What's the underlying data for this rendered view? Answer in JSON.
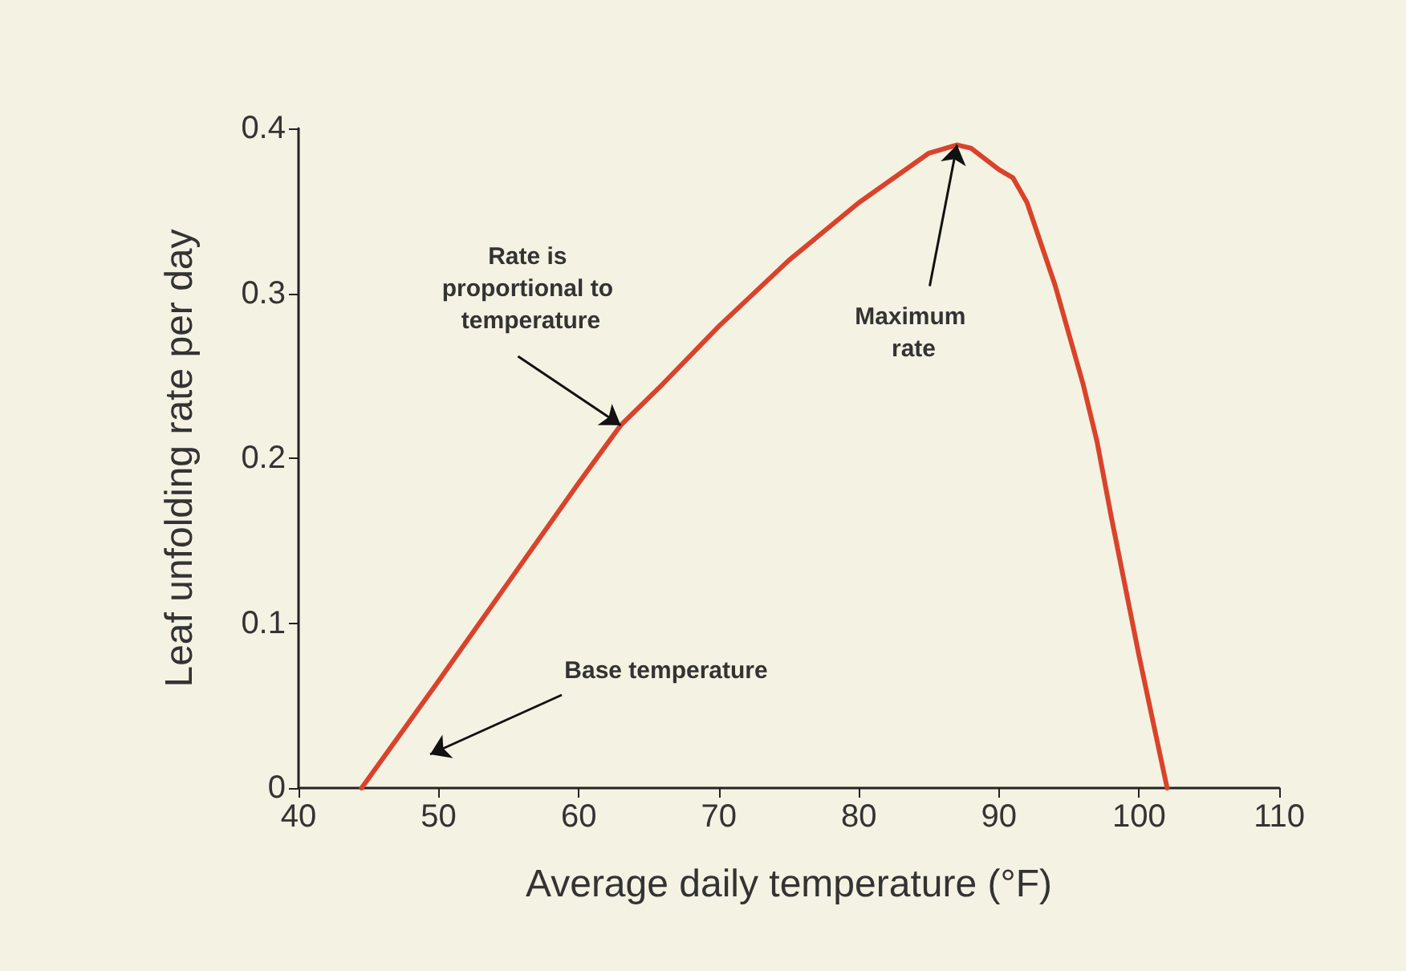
{
  "chart_data": {
    "type": "line",
    "xlabel": "Average daily temperature (°F)",
    "ylabel": "Leaf unfolding rate per day",
    "x": [
      44.5,
      50,
      55,
      60,
      63,
      66,
      70,
      75,
      80,
      85,
      87,
      88,
      90,
      91,
      92,
      94,
      96,
      97,
      98,
      100,
      101,
      102
    ],
    "series": [
      {
        "color": "#d9432b",
        "values": [
          0,
          0.065,
          0.125,
          0.185,
          0.22,
          0.245,
          0.28,
          0.32,
          0.355,
          0.385,
          0.39,
          0.388,
          0.375,
          0.37,
          0.355,
          0.305,
          0.245,
          0.21,
          0.165,
          0.08,
          0.04,
          0
        ]
      }
    ],
    "xlim": [
      40,
      110
    ],
    "ylim": [
      0,
      0.4
    ],
    "xticks": [
      40,
      50,
      60,
      70,
      80,
      90,
      100,
      110
    ],
    "yticks": [
      0,
      0.1,
      0.2,
      0.3,
      0.4
    ],
    "grid": false,
    "marker": "none",
    "line_style": "solid",
    "annotations": [
      {
        "text": "Rate is proportional to temperature",
        "x": 63,
        "y": 0.22
      },
      {
        "text": "Maximum rate",
        "x": 87,
        "y": 0.39
      },
      "Base temperature"
    ]
  }
}
